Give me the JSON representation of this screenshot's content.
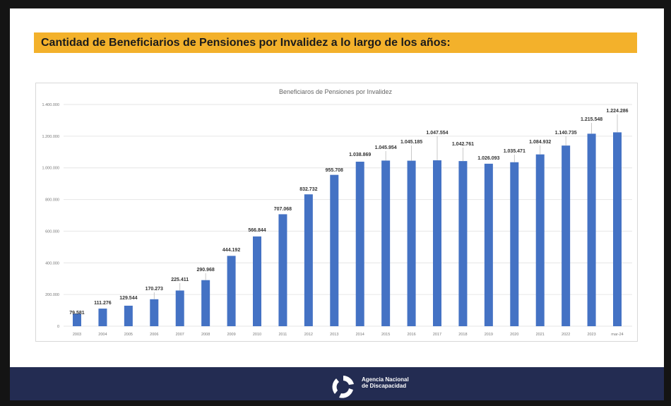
{
  "slide": {
    "heading": "Cantidad de Beneficiarios de Pensiones por Invalidez a lo largo de los años:",
    "footer_logo_text": "Agencia Nacional de Discapacidad",
    "colors": {
      "banner": "#f3b12b",
      "footer": "#232c52",
      "bar": "#4472c4"
    }
  },
  "chart_data": {
    "type": "bar",
    "title": "Beneficiaros de Pensiones por Invalidez",
    "categories": [
      "2003",
      "2004",
      "2005",
      "2006",
      "2007",
      "2008",
      "2009",
      "2010",
      "2011",
      "2012",
      "2013",
      "2014",
      "2015",
      "2016",
      "2017",
      "2018",
      "2019",
      "2020",
      "2021",
      "2022",
      "2023",
      "mar-24"
    ],
    "values": [
      79581,
      111276,
      129544,
      170273,
      225411,
      290968,
      444192,
      566844,
      707068,
      832732,
      955708,
      1038869,
      1045954,
      1045185,
      1047554,
      1042761,
      1026093,
      1035471,
      1084932,
      1140735,
      1215548,
      1224286
    ],
    "data_labels": [
      "79.581",
      "111.276",
      "129.544",
      "170.273",
      "225.411",
      "290.968",
      "444.192",
      "566.844",
      "707.068",
      "832.732",
      "955.708",
      "1.038.869",
      "1.045.954",
      "1.045.185",
      "1.047.554",
      "1.042.761",
      "1.026.093",
      "1.035.471",
      "1.084.932",
      "1.140.735",
      "1.215.548",
      "1.224.286"
    ],
    "yticks": [
      0,
      200000,
      400000,
      600000,
      800000,
      1000000,
      1200000,
      1400000
    ],
    "ytick_labels": [
      "0",
      "200.000",
      "400.000",
      "600.000",
      "800.000",
      "1.000.000",
      "1.200.000",
      "1.400.000"
    ],
    "ylim": [
      0,
      1400000
    ],
    "xlabel": "",
    "ylabel": "",
    "grid": true,
    "legend": "none"
  }
}
